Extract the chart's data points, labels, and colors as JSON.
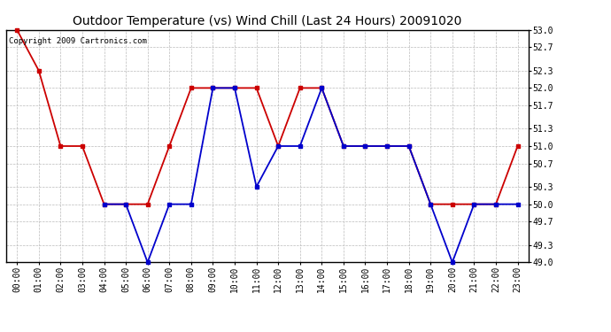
{
  "title": "Outdoor Temperature (vs) Wind Chill (Last 24 Hours) 20091020",
  "copyright": "Copyright 2009 Cartronics.com",
  "hours": [
    "00:00",
    "01:00",
    "02:00",
    "03:00",
    "04:00",
    "05:00",
    "06:00",
    "07:00",
    "08:00",
    "09:00",
    "10:00",
    "11:00",
    "12:00",
    "13:00",
    "14:00",
    "15:00",
    "16:00",
    "17:00",
    "18:00",
    "19:00",
    "20:00",
    "21:00",
    "22:00",
    "23:00"
  ],
  "temp": [
    53.0,
    52.3,
    51.0,
    51.0,
    50.0,
    50.0,
    50.0,
    51.0,
    52.0,
    52.0,
    52.0,
    52.0,
    51.0,
    52.0,
    52.0,
    51.0,
    51.0,
    51.0,
    51.0,
    50.0,
    50.0,
    50.0,
    50.0,
    51.0
  ],
  "wind_chill": [
    null,
    null,
    null,
    null,
    50.0,
    50.0,
    49.0,
    50.0,
    50.0,
    52.0,
    52.0,
    50.3,
    51.0,
    51.0,
    52.0,
    51.0,
    51.0,
    51.0,
    51.0,
    50.0,
    49.0,
    50.0,
    50.0,
    50.0
  ],
  "temp_color": "#cc0000",
  "wind_chill_color": "#0000cc",
  "bg_color": "#ffffff",
  "plot_bg_color": "#ffffff",
  "grid_color": "#bbbbbb",
  "ylim": [
    49.0,
    53.0
  ],
  "yticks": [
    49.0,
    49.3,
    49.7,
    50.0,
    50.3,
    50.7,
    51.0,
    51.3,
    51.7,
    52.0,
    52.3,
    52.7,
    53.0
  ],
  "title_fontsize": 10,
  "copyright_fontsize": 6.5,
  "tick_fontsize": 7,
  "marker_size": 3.5,
  "line_width": 1.3
}
